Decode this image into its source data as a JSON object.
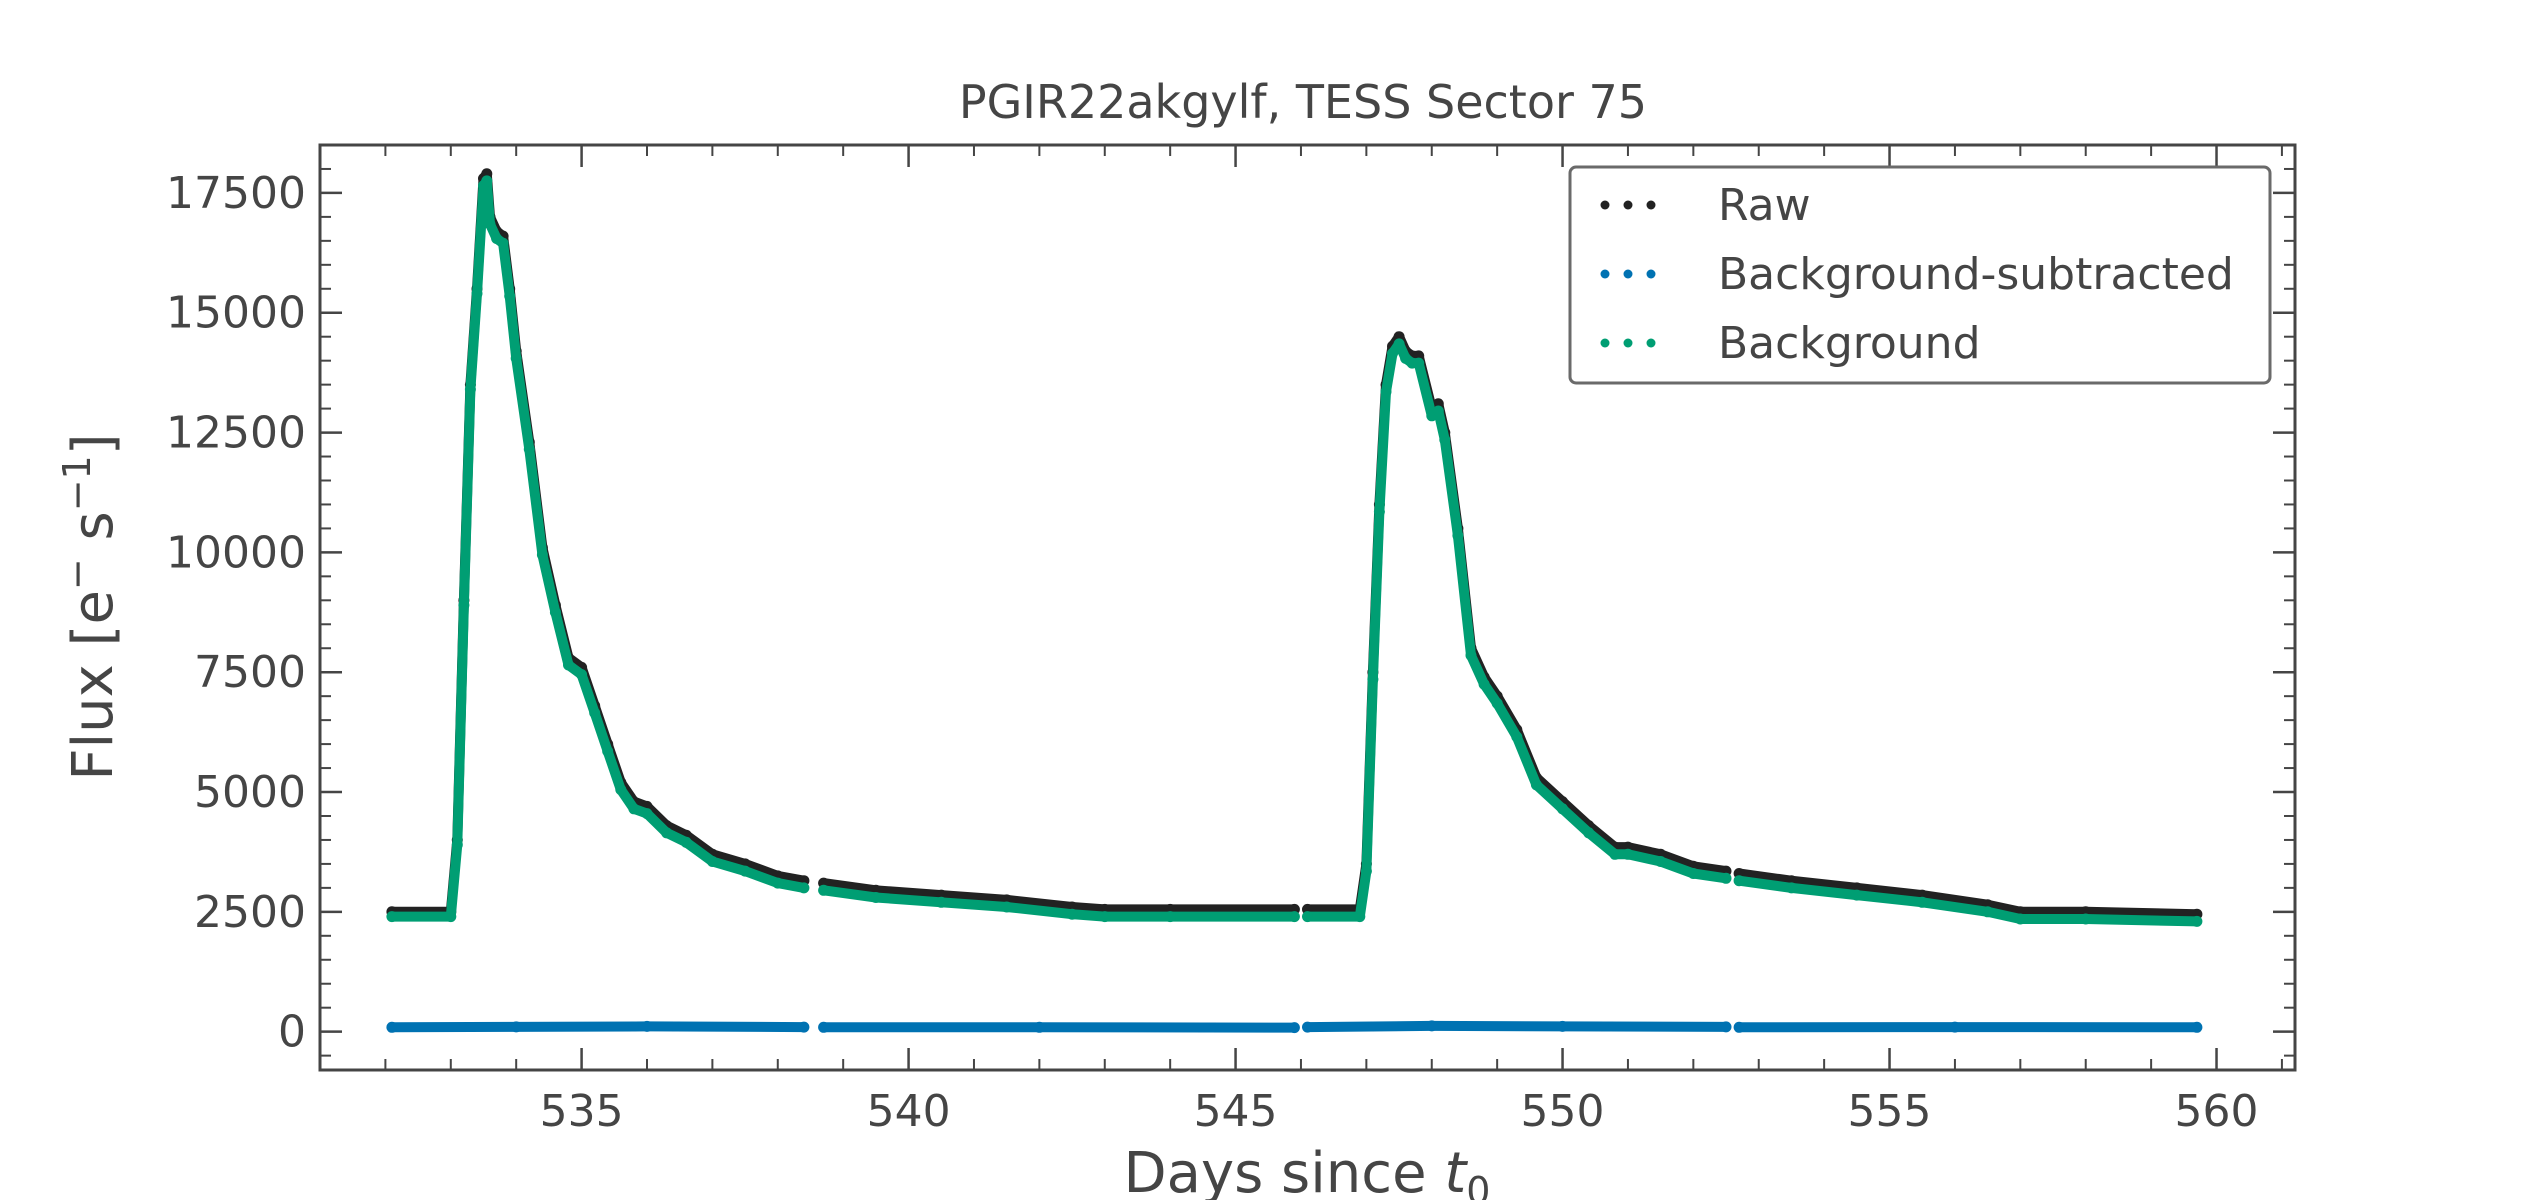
{
  "chart_data": {
    "type": "scatter",
    "title": "PGIR22akgylf, TESS Sector 75",
    "xlabel_text": "Days since ",
    "xlabel_var": "t",
    "xlabel_sub": "0",
    "ylabel_text": "Flux [e",
    "ylabel_sup1": "−",
    "ylabel_mid": " s",
    "ylabel_sup2": "−1",
    "ylabel_end": "]",
    "xlim": [
      531,
      561.2
    ],
    "ylim": [
      -800,
      18500
    ],
    "x_ticks": [
      535,
      540,
      545,
      550,
      555,
      560
    ],
    "x_tick_labels": [
      "535",
      "540",
      "545",
      "550",
      "555",
      "560"
    ],
    "y_ticks": [
      0,
      2500,
      5000,
      7500,
      10000,
      12500,
      15000,
      17500
    ],
    "y_tick_labels": [
      "0",
      "2500",
      "5000",
      "7500",
      "10000",
      "12500",
      "15000",
      "17500"
    ],
    "grid": false,
    "legend_position": "top-right",
    "gaps": [
      [
        538.4,
        538.7
      ],
      [
        545.9,
        546.1
      ],
      [
        552.5,
        552.7
      ]
    ],
    "series": [
      {
        "name": "Raw",
        "color": "#222222",
        "x": [
          532.1,
          533.0,
          533.1,
          533.2,
          533.3,
          533.4,
          533.5,
          533.55,
          533.6,
          533.7,
          533.8,
          533.9,
          534.0,
          534.2,
          534.4,
          534.6,
          534.8,
          535.0,
          535.2,
          535.4,
          535.6,
          535.8,
          536.0,
          536.3,
          536.6,
          537.0,
          537.5,
          538.0,
          538.4,
          538.7,
          539.5,
          540.5,
          541.5,
          542.5,
          543.0,
          544.0,
          545.9,
          546.1,
          546.9,
          547.0,
          547.1,
          547.2,
          547.3,
          547.4,
          547.5,
          547.6,
          547.7,
          547.8,
          548.0,
          548.1,
          548.2,
          548.4,
          548.6,
          548.8,
          549.0,
          549.3,
          549.6,
          550.0,
          550.4,
          550.8,
          551.0,
          551.5,
          552.0,
          552.5,
          552.7,
          553.5,
          554.5,
          555.5,
          556.5,
          557.0,
          558.0,
          559.7
        ],
        "y": [
          2500,
          2500,
          4000,
          9000,
          13500,
          15500,
          17800,
          17900,
          17000,
          16700,
          16600,
          15500,
          14200,
          12300,
          10100,
          8900,
          7800,
          7600,
          6800,
          6000,
          5200,
          4800,
          4700,
          4300,
          4100,
          3700,
          3500,
          3250,
          3150,
          3100,
          2950,
          2850,
          2750,
          2600,
          2550,
          2550,
          2550,
          2550,
          2550,
          3500,
          7500,
          11000,
          13500,
          14300,
          14500,
          14200,
          14100,
          14100,
          13000,
          13100,
          12500,
          10500,
          8000,
          7400,
          7000,
          6300,
          5300,
          4800,
          4300,
          3850,
          3850,
          3700,
          3450,
          3350,
          3300,
          3150,
          3000,
          2850,
          2650,
          2500,
          2500,
          2450
        ]
      },
      {
        "name": "Background-subtracted",
        "color": "#0072b2",
        "x": [
          532.1,
          534.0,
          536.0,
          538.4,
          538.7,
          542.0,
          545.9,
          546.1,
          548.0,
          550.0,
          552.5,
          552.7,
          556.0,
          559.7
        ],
        "y": [
          90,
          100,
          110,
          95,
          90,
          90,
          85,
          95,
          120,
          110,
          100,
          90,
          95,
          90
        ]
      },
      {
        "name": "Background",
        "color": "#009e73",
        "x": [
          532.1,
          533.0,
          533.1,
          533.2,
          533.3,
          533.4,
          533.5,
          533.55,
          533.6,
          533.7,
          533.8,
          533.9,
          534.0,
          534.2,
          534.4,
          534.6,
          534.8,
          535.0,
          535.2,
          535.4,
          535.6,
          535.8,
          536.0,
          536.3,
          536.6,
          537.0,
          537.5,
          538.0,
          538.4,
          538.7,
          539.5,
          540.5,
          541.5,
          542.5,
          543.0,
          544.0,
          545.9,
          546.1,
          546.9,
          547.0,
          547.1,
          547.2,
          547.3,
          547.4,
          547.5,
          547.6,
          547.7,
          547.8,
          548.0,
          548.1,
          548.2,
          548.4,
          548.6,
          548.8,
          549.0,
          549.3,
          549.6,
          550.0,
          550.4,
          550.8,
          551.0,
          551.5,
          552.0,
          552.5,
          552.7,
          553.5,
          554.5,
          555.5,
          556.5,
          557.0,
          558.0,
          559.7
        ],
        "y": [
          2400,
          2400,
          3900,
          8900,
          13400,
          15400,
          17650,
          17750,
          16850,
          16550,
          16450,
          15350,
          14050,
          12150,
          9950,
          8750,
          7650,
          7450,
          6650,
          5850,
          5050,
          4650,
          4550,
          4150,
          3950,
          3550,
          3350,
          3100,
          3000,
          2950,
          2800,
          2700,
          2600,
          2450,
          2400,
          2400,
          2400,
          2400,
          2400,
          3350,
          7350,
          10850,
          13350,
          14150,
          14350,
          14050,
          13950,
          13950,
          12850,
          12950,
          12350,
          10350,
          7850,
          7250,
          6850,
          6150,
          5150,
          4650,
          4150,
          3700,
          3700,
          3550,
          3300,
          3200,
          3150,
          3000,
          2850,
          2700,
          2500,
          2350,
          2350,
          2300
        ]
      }
    ]
  }
}
